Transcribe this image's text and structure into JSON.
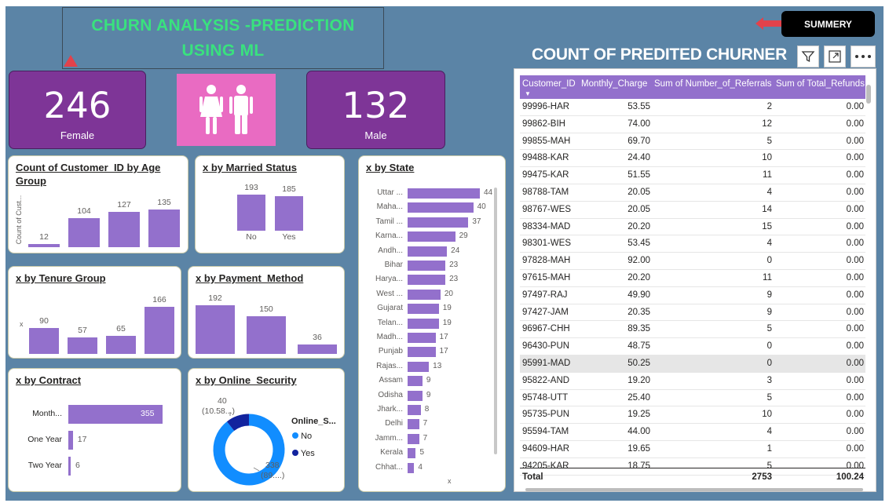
{
  "title": "CHURN ANALYSIS -PREDICTION\nUSING ML",
  "summery_label": "SUMMERY",
  "kpis": {
    "female": {
      "value": "246",
      "label": "Female"
    },
    "male": {
      "value": "132",
      "label": "Male"
    }
  },
  "colors": {
    "bar": "#9370cc",
    "kpi": "#7e3597",
    "background": "#5b84a6",
    "title": "#39e27e",
    "donut_no": "#118dff",
    "donut_yes": "#12239e"
  },
  "charts": {
    "age_group": {
      "title": "Count of Customer_ID by Age Group",
      "ylabel": "Count of Cust...",
      "values": [
        "12",
        "104",
        "127",
        "135"
      ]
    },
    "married": {
      "title": "x by Married Status",
      "categories": [
        "No",
        "Yes"
      ],
      "values": [
        "193",
        "185"
      ]
    },
    "tenure": {
      "title": "x by Tenure Group",
      "ylabel": "x",
      "values": [
        "90",
        "57",
        "65",
        "166"
      ]
    },
    "payment": {
      "title": "x by Payment_Method",
      "values": [
        "192",
        "150",
        "36"
      ]
    },
    "contract": {
      "title": "x by Contract",
      "categories": [
        "Month...",
        "One Year",
        "Two Year"
      ],
      "values": [
        "355",
        "17",
        "6"
      ]
    },
    "security": {
      "title": "x by Online_Security",
      "legend_title": "Online_S...",
      "legend": [
        "No",
        "Yes"
      ],
      "yes_label_1": "40",
      "yes_label_2": "(10.58...)",
      "no_label_1": "338",
      "no_label_2": "(89....)"
    },
    "state": {
      "title": "x by State",
      "xlabel": "x",
      "categories": [
        "Uttar ...",
        "Maha...",
        "Tamil ...",
        "Karna...",
        "Andh...",
        "Bihar",
        "Harya...",
        "West ...",
        "Gujarat",
        "Telan...",
        "Madh...",
        "Punjab",
        "Rajas...",
        "Assam",
        "Odisha",
        "Jhark...",
        "Delhi",
        "Jamm...",
        "Kerala",
        "Chhat..."
      ],
      "values": [
        "44",
        "40",
        "37",
        "29",
        "24",
        "23",
        "23",
        "20",
        "19",
        "19",
        "17",
        "17",
        "13",
        "9",
        "9",
        "8",
        "7",
        "7",
        "5",
        "4"
      ]
    }
  },
  "chart_data": [
    {
      "type": "bar",
      "title": "Count of Customer_ID by Age Group",
      "ylabel": "Count of Cust...",
      "values": [
        12,
        104,
        127,
        135
      ]
    },
    {
      "type": "bar",
      "title": "x by Married Status",
      "categories": [
        "No",
        "Yes"
      ],
      "values": [
        193,
        185
      ]
    },
    {
      "type": "bar",
      "title": "x by Tenure Group",
      "ylabel": "x",
      "values": [
        90,
        57,
        65,
        166
      ]
    },
    {
      "type": "bar",
      "title": "x by Payment_Method",
      "values": [
        192,
        150,
        36
      ]
    },
    {
      "type": "bar",
      "title": "x by Contract",
      "categories": [
        "Month...",
        "One Year",
        "Two Year"
      ],
      "values": [
        355,
        17,
        6
      ]
    },
    {
      "type": "pie",
      "title": "x by Online_Security",
      "categories": [
        "No",
        "Yes"
      ],
      "values": [
        338,
        40
      ]
    },
    {
      "type": "bar",
      "title": "x by State",
      "xlabel": "x",
      "categories": [
        "Uttar ...",
        "Maha...",
        "Tamil ...",
        "Karna...",
        "Andh...",
        "Bihar",
        "Harya...",
        "West ...",
        "Gujarat",
        "Telan...",
        "Madh...",
        "Punjab",
        "Rajas...",
        "Assam",
        "Odisha",
        "Jhark...",
        "Delhi",
        "Jamm...",
        "Kerala",
        "Chhat..."
      ],
      "values": [
        44,
        40,
        37,
        29,
        24,
        23,
        23,
        20,
        19,
        19,
        17,
        17,
        13,
        9,
        9,
        8,
        7,
        7,
        5,
        4
      ]
    }
  ],
  "table": {
    "title": "COUNT OF PREDITED CHURNER",
    "columns": [
      "Customer_ID",
      "Monthly_Charge",
      "Sum of Number_of_Referrals",
      "Sum of Total_Refunds"
    ],
    "rows": [
      [
        "99996-HAR",
        "53.55",
        "2",
        "0.00"
      ],
      [
        "99862-BIH",
        "74.00",
        "12",
        "0.00"
      ],
      [
        "99855-MAH",
        "69.70",
        "5",
        "0.00"
      ],
      [
        "99488-KAR",
        "24.40",
        "10",
        "0.00"
      ],
      [
        "99475-KAR",
        "51.55",
        "11",
        "0.00"
      ],
      [
        "98788-TAM",
        "20.05",
        "4",
        "0.00"
      ],
      [
        "98767-WES",
        "20.05",
        "14",
        "0.00"
      ],
      [
        "98334-MAD",
        "20.20",
        "15",
        "0.00"
      ],
      [
        "98301-WES",
        "53.45",
        "4",
        "0.00"
      ],
      [
        "97828-MAH",
        "92.00",
        "0",
        "0.00"
      ],
      [
        "97615-MAH",
        "20.20",
        "11",
        "0.00"
      ],
      [
        "97497-RAJ",
        "49.90",
        "9",
        "0.00"
      ],
      [
        "97427-JAM",
        "20.35",
        "9",
        "0.00"
      ],
      [
        "96967-CHH",
        "89.35",
        "5",
        "0.00"
      ],
      [
        "96430-PUN",
        "48.75",
        "0",
        "0.00"
      ],
      [
        "95991-MAD",
        "50.25",
        "0",
        "0.00"
      ],
      [
        "95822-AND",
        "19.20",
        "3",
        "0.00"
      ],
      [
        "95748-UTT",
        "25.40",
        "5",
        "0.00"
      ],
      [
        "95735-PUN",
        "19.25",
        "10",
        "0.00"
      ],
      [
        "95594-TAM",
        "44.00",
        "4",
        "0.00"
      ],
      [
        "94609-HAR",
        "19.65",
        "1",
        "0.00"
      ],
      [
        "94205-KAR",
        "18.75",
        "5",
        "0.00"
      ]
    ],
    "total": {
      "label": "Total",
      "referrals": "2753",
      "refunds": "100.24"
    }
  }
}
